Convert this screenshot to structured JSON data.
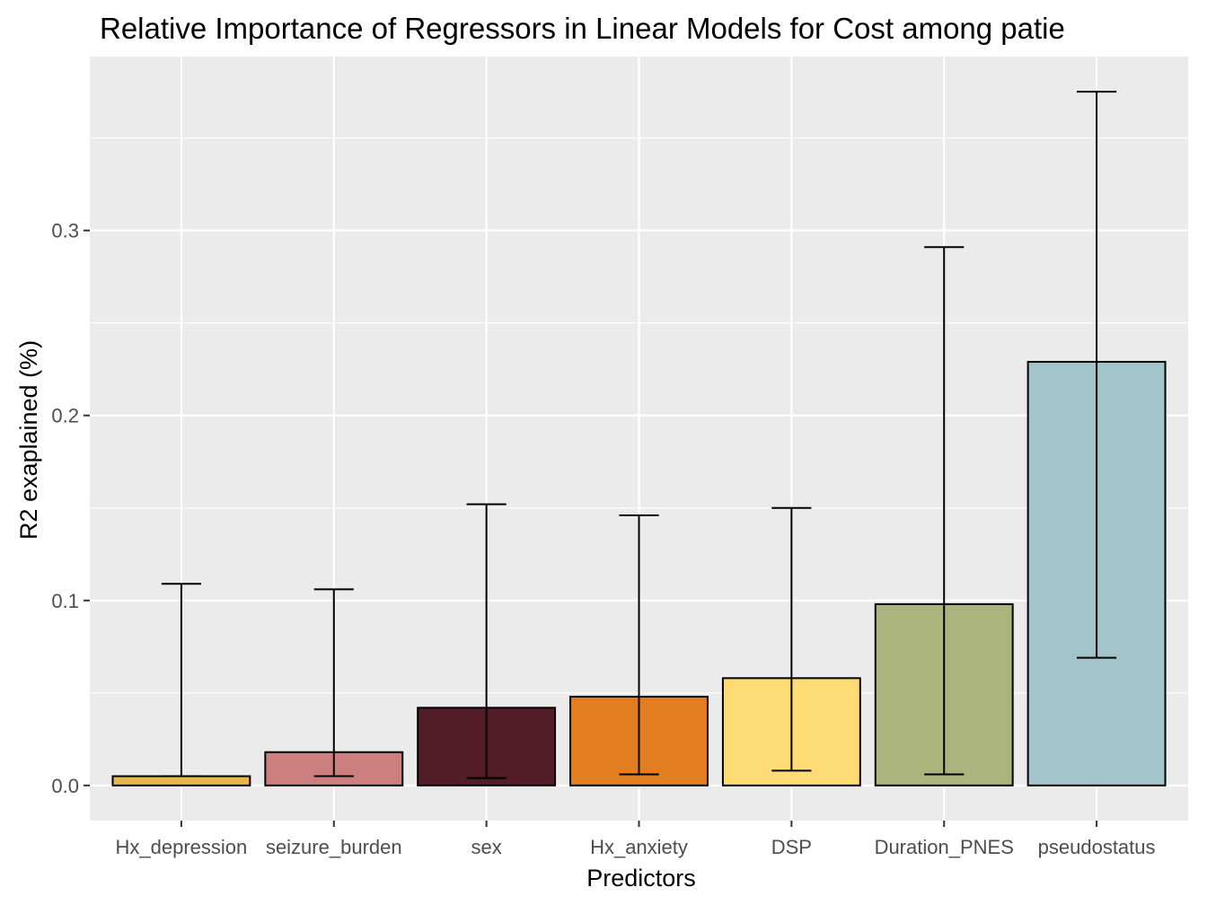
{
  "chart_data": {
    "type": "bar",
    "title": "Relative Importance of Regressors in Linear Models for Cost among patie",
    "xlabel": "Predictors",
    "ylabel": "R2 exaplained (%)",
    "categories": [
      "Hx_depression",
      "seizure_burden",
      "sex",
      "Hx_anxiety",
      "DSP",
      "Duration_PNES",
      "pseudostatus"
    ],
    "values": [
      0.005,
      0.018,
      0.042,
      0.048,
      0.058,
      0.098,
      0.229
    ],
    "error_lower": [
      0.005,
      0.005,
      0.004,
      0.006,
      0.008,
      0.006,
      0.069
    ],
    "error_upper": [
      0.109,
      0.106,
      0.152,
      0.146,
      0.15,
      0.291,
      0.375
    ],
    "colors": [
      "#E8B54A",
      "#CD7F7F",
      "#521D26",
      "#E27D21",
      "#FDDC76",
      "#AAB47C",
      "#A3C4CA"
    ],
    "ylim": [
      -0.019,
      0.394
    ],
    "yticks": [
      0.0,
      0.1,
      0.2,
      0.3
    ],
    "ytick_labels": [
      "0.0",
      "0.1",
      "0.2",
      "0.3"
    ],
    "grid": true,
    "legend": "none",
    "panel_background": "#EBEBEB",
    "grid_color": "#FFFFFF"
  }
}
